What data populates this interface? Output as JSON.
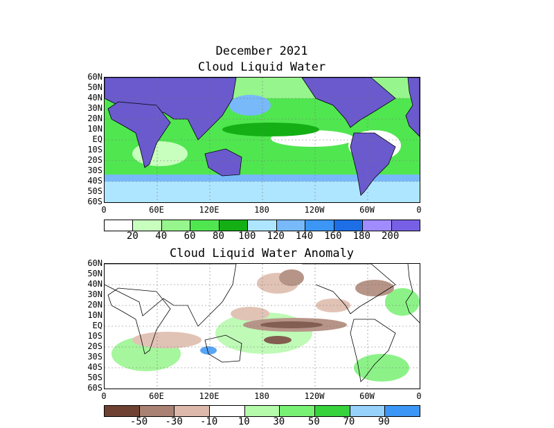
{
  "titles": {
    "month": "December 2021",
    "main": "Cloud Liquid Water",
    "anomaly": "Cloud Liquid Water Anomaly"
  },
  "lat_labels": [
    "60N",
    "50N",
    "40N",
    "30N",
    "20N",
    "10N",
    "EQ",
    "10S",
    "20S",
    "30S",
    "40S",
    "50S",
    "60S"
  ],
  "lon_labels": [
    "0",
    "60E",
    "120E",
    "180",
    "120W",
    "60W",
    "0"
  ],
  "colorbar1": {
    "colors": [
      "#ffffff",
      "#c8ffbe",
      "#96f58c",
      "#50e650",
      "#14af14",
      "#afe6ff",
      "#78b9fa",
      "#3c96f5",
      "#1e6ee6",
      "#a08cff",
      "#7860e6"
    ],
    "labels": [
      "20",
      "40",
      "60",
      "80",
      "100",
      "120",
      "140",
      "160",
      "180",
      "200"
    ]
  },
  "colorbar2": {
    "colors": [
      "#6e4132",
      "#aa8273",
      "#dcb9aa",
      "#ffffff",
      "#b4faaa",
      "#78f073",
      "#37d23c",
      "#96d2fa",
      "#3c96f5"
    ],
    "labels": [
      "-50",
      "-30",
      "-10",
      "10",
      "30",
      "50",
      "70",
      "90"
    ]
  },
  "colors": {
    "land_mask": "#6a5acd",
    "coast": "#000000",
    "grid": "#777777"
  }
}
